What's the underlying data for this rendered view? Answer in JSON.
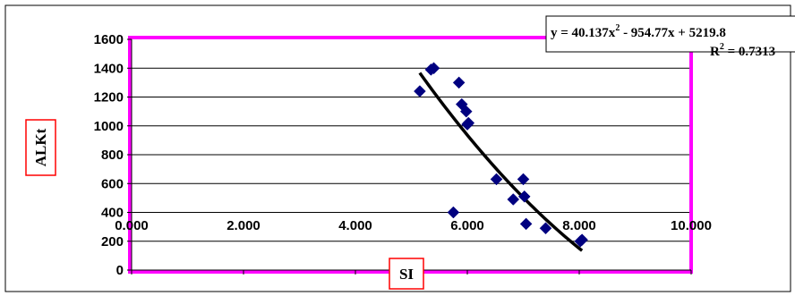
{
  "chart_data": {
    "type": "scatter",
    "title": "",
    "xlabel": "SI",
    "ylabel": "ALKt",
    "xlim": [
      0,
      10
    ],
    "ylim": [
      0,
      1600
    ],
    "x_ticks": [
      0,
      2,
      4,
      6,
      8,
      10
    ],
    "x_tick_labels": [
      "0.000",
      "2.000",
      "4.000",
      "6.000",
      "8.000",
      "10.000"
    ],
    "y_ticks": [
      0,
      200,
      400,
      600,
      800,
      1000,
      1200,
      1400,
      1600
    ],
    "y_tick_labels": [
      "0",
      "200",
      "400",
      "600",
      "800",
      "1000",
      "1200",
      "1400",
      "1600"
    ],
    "grid": "horizontal",
    "legend": "none",
    "series": [
      {
        "marker": "diamond",
        "color": "#000080",
        "points": [
          {
            "x": 5.15,
            "y": 1240
          },
          {
            "x": 5.35,
            "y": 1390
          },
          {
            "x": 5.4,
            "y": 1400
          },
          {
            "x": 5.75,
            "y": 400
          },
          {
            "x": 5.85,
            "y": 1300
          },
          {
            "x": 5.9,
            "y": 1150
          },
          {
            "x": 5.98,
            "y": 1100
          },
          {
            "x": 6.0,
            "y": 1010
          },
          {
            "x": 6.02,
            "y": 1020
          },
          {
            "x": 6.52,
            "y": 630
          },
          {
            "x": 6.82,
            "y": 490
          },
          {
            "x": 7.0,
            "y": 630
          },
          {
            "x": 7.02,
            "y": 510
          },
          {
            "x": 7.05,
            "y": 320
          },
          {
            "x": 7.4,
            "y": 290
          },
          {
            "x": 8.02,
            "y": 200
          },
          {
            "x": 8.05,
            "y": 210
          }
        ]
      }
    ],
    "trendline": {
      "type": "polynomial",
      "order": 2,
      "coefficients": [
        40.137,
        -954.77,
        5219.8
      ],
      "x_range": [
        5.15,
        8.05
      ],
      "color": "#000000",
      "equation_line1_before": "y = 40.137x",
      "equation_line1_after": " - 954.77x + 5219.8",
      "equation_line2_before": "R",
      "equation_line2_after": " = 0.7313",
      "superscript": "2"
    },
    "colors": {
      "plot_border": "#ff00ff",
      "label_box_border": "#ff0000",
      "marker": "#000080",
      "gridline": "#000000"
    }
  }
}
